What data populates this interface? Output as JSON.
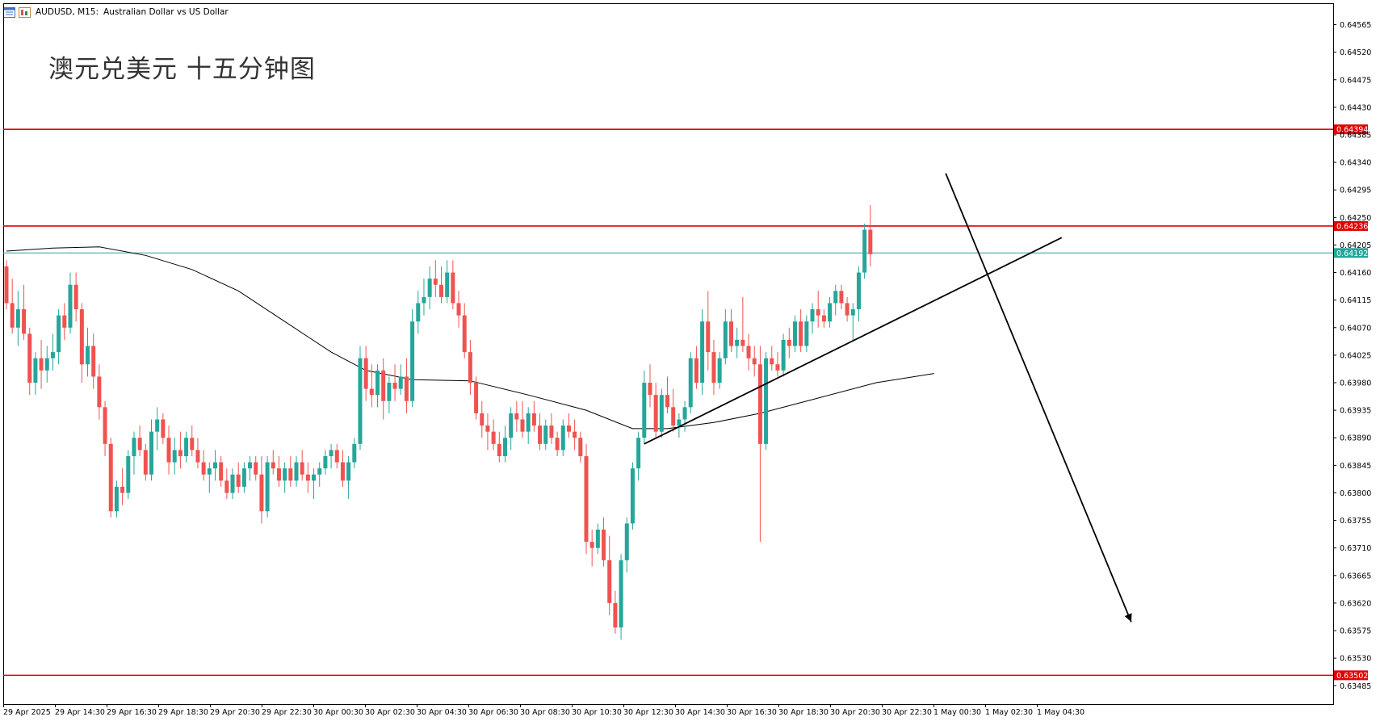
{
  "header": {
    "symbol": "AUDUSD, M15:",
    "description": "Australian Dollar vs US Dollar"
  },
  "title_overlay": "澳元兑美元 十五分钟图",
  "colors": {
    "bull": "#26a69a",
    "bear": "#ef5350",
    "level_line": "#e00000",
    "current_price_line": "#26a69a",
    "ma_line": "#000000",
    "trend_line": "#000000"
  },
  "chart_data": {
    "type": "candlestick",
    "symbol": "AUDUSD",
    "timeframe": "M15",
    "ylim": [
      0.63455,
      0.646
    ],
    "y_ticks": [
      "0.64565",
      "0.64520",
      "0.64475",
      "0.64430",
      "0.64385",
      "0.64340",
      "0.64295",
      "0.64250",
      "0.64205",
      "0.64160",
      "0.64115",
      "0.64070",
      "0.64025",
      "0.63980",
      "0.63935",
      "0.63890",
      "0.63845",
      "0.63800",
      "0.63755",
      "0.63710",
      "0.63665",
      "0.63620",
      "0.63575",
      "0.63530",
      "0.63485"
    ],
    "x_ticks": [
      "29 Apr 2025",
      "29 Apr 14:30",
      "29 Apr 16:30",
      "29 Apr 18:30",
      "29 Apr 20:30",
      "29 Apr 22:30",
      "30 Apr 00:30",
      "30 Apr 02:30",
      "30 Apr 04:30",
      "30 Apr 06:30",
      "30 Apr 08:30",
      "30 Apr 10:30",
      "30 Apr 12:30",
      "30 Apr 14:30",
      "30 Apr 16:30",
      "30 Apr 18:30",
      "30 Apr 20:30",
      "30 Apr 22:30",
      "1 May 00:30",
      "1 May 02:30",
      "1 May 04:30"
    ],
    "levels": [
      {
        "label": "0.64394",
        "value": 0.64394
      },
      {
        "label": "0.64236",
        "value": 0.64236
      },
      {
        "label": "0.63502",
        "value": 0.63502
      }
    ],
    "current_price": {
      "label": "0.64192",
      "value": 0.64192
    },
    "candles": [
      [
        0.6417,
        0.6418,
        0.641,
        0.6411
      ],
      [
        0.6411,
        0.6415,
        0.6406,
        0.6407
      ],
      [
        0.6407,
        0.6413,
        0.6404,
        0.641
      ],
      [
        0.641,
        0.6414,
        0.6405,
        0.6406
      ],
      [
        0.6406,
        0.6407,
        0.6396,
        0.6398
      ],
      [
        0.6398,
        0.6403,
        0.6396,
        0.6402
      ],
      [
        0.6402,
        0.6405,
        0.6397,
        0.64
      ],
      [
        0.64,
        0.6404,
        0.6398,
        0.6402
      ],
      [
        0.6402,
        0.6406,
        0.64,
        0.6403
      ],
      [
        0.6403,
        0.641,
        0.6401,
        0.6409
      ],
      [
        0.6409,
        0.6411,
        0.6405,
        0.6407
      ],
      [
        0.6407,
        0.6416,
        0.6406,
        0.6414
      ],
      [
        0.6414,
        0.6416,
        0.6408,
        0.641
      ],
      [
        0.641,
        0.6411,
        0.6398,
        0.6401
      ],
      [
        0.6401,
        0.6407,
        0.6399,
        0.6404
      ],
      [
        0.6404,
        0.6406,
        0.6397,
        0.6399
      ],
      [
        0.6399,
        0.6401,
        0.6392,
        0.6394
      ],
      [
        0.6394,
        0.6395,
        0.6386,
        0.6388
      ],
      [
        0.6388,
        0.6389,
        0.6376,
        0.6377
      ],
      [
        0.6377,
        0.6382,
        0.6376,
        0.6381
      ],
      [
        0.6381,
        0.6384,
        0.6378,
        0.638
      ],
      [
        0.638,
        0.6387,
        0.6379,
        0.6386
      ],
      [
        0.6386,
        0.639,
        0.6383,
        0.6389
      ],
      [
        0.6389,
        0.6391,
        0.6386,
        0.6387
      ],
      [
        0.6387,
        0.6388,
        0.6382,
        0.6383
      ],
      [
        0.6383,
        0.6392,
        0.6382,
        0.639
      ],
      [
        0.639,
        0.6394,
        0.6387,
        0.6392
      ],
      [
        0.6392,
        0.6393,
        0.6388,
        0.6389
      ],
      [
        0.6389,
        0.6391,
        0.6383,
        0.6385
      ],
      [
        0.6385,
        0.6389,
        0.6383,
        0.6387
      ],
      [
        0.6387,
        0.639,
        0.6384,
        0.6386
      ],
      [
        0.6386,
        0.639,
        0.6385,
        0.6389
      ],
      [
        0.6389,
        0.6391,
        0.6386,
        0.6387
      ],
      [
        0.6387,
        0.6389,
        0.6384,
        0.6385
      ],
      [
        0.6385,
        0.6387,
        0.6382,
        0.6383
      ],
      [
        0.6383,
        0.6385,
        0.638,
        0.6384
      ],
      [
        0.6384,
        0.6387,
        0.6382,
        0.6385
      ],
      [
        0.6385,
        0.6386,
        0.6381,
        0.6382
      ],
      [
        0.6382,
        0.6384,
        0.6379,
        0.638
      ],
      [
        0.638,
        0.6384,
        0.6379,
        0.6383
      ],
      [
        0.6383,
        0.6385,
        0.638,
        0.6381
      ],
      [
        0.6381,
        0.6385,
        0.638,
        0.6384
      ],
      [
        0.6384,
        0.6386,
        0.6382,
        0.6385
      ],
      [
        0.6385,
        0.6386,
        0.6382,
        0.6383
      ],
      [
        0.6383,
        0.6386,
        0.6375,
        0.6377
      ],
      [
        0.6377,
        0.6386,
        0.6376,
        0.6385
      ],
      [
        0.6385,
        0.6387,
        0.6383,
        0.6384
      ],
      [
        0.6384,
        0.6386,
        0.6381,
        0.6382
      ],
      [
        0.6382,
        0.6385,
        0.638,
        0.6384
      ],
      [
        0.6384,
        0.6386,
        0.6381,
        0.6382
      ],
      [
        0.6382,
        0.6386,
        0.6381,
        0.6385
      ],
      [
        0.6385,
        0.6387,
        0.6382,
        0.6383
      ],
      [
        0.6383,
        0.6385,
        0.638,
        0.6382
      ],
      [
        0.6382,
        0.6384,
        0.6379,
        0.6383
      ],
      [
        0.6383,
        0.6385,
        0.6381,
        0.6384
      ],
      [
        0.6384,
        0.6387,
        0.6383,
        0.6386
      ],
      [
        0.6386,
        0.6388,
        0.6384,
        0.6387
      ],
      [
        0.6387,
        0.6388,
        0.6384,
        0.6385
      ],
      [
        0.6385,
        0.6387,
        0.6381,
        0.6382
      ],
      [
        0.6382,
        0.6386,
        0.6379,
        0.6385
      ],
      [
        0.6385,
        0.6389,
        0.6384,
        0.6388
      ],
      [
        0.6388,
        0.6404,
        0.6387,
        0.6402
      ],
      [
        0.6402,
        0.6404,
        0.6395,
        0.6397
      ],
      [
        0.6397,
        0.6401,
        0.6394,
        0.6396
      ],
      [
        0.6396,
        0.6401,
        0.6394,
        0.64
      ],
      [
        0.64,
        0.6402,
        0.6392,
        0.6395
      ],
      [
        0.6395,
        0.6399,
        0.6393,
        0.6398
      ],
      [
        0.6398,
        0.6401,
        0.6395,
        0.6397
      ],
      [
        0.6397,
        0.6401,
        0.6396,
        0.6399
      ],
      [
        0.6399,
        0.6402,
        0.6393,
        0.6395
      ],
      [
        0.6395,
        0.641,
        0.6394,
        0.6408
      ],
      [
        0.6408,
        0.6413,
        0.6406,
        0.6411
      ],
      [
        0.6411,
        0.6415,
        0.6409,
        0.6412
      ],
      [
        0.6412,
        0.6417,
        0.641,
        0.6415
      ],
      [
        0.6415,
        0.6418,
        0.6412,
        0.6414
      ],
      [
        0.6414,
        0.6417,
        0.6411,
        0.6412
      ],
      [
        0.6412,
        0.6418,
        0.6411,
        0.6416
      ],
      [
        0.6416,
        0.6418,
        0.641,
        0.6411
      ],
      [
        0.6411,
        0.6413,
        0.6407,
        0.6409
      ],
      [
        0.6409,
        0.6411,
        0.6402,
        0.6403
      ],
      [
        0.6403,
        0.6405,
        0.6396,
        0.6398
      ],
      [
        0.6398,
        0.6399,
        0.6392,
        0.6393
      ],
      [
        0.6393,
        0.6395,
        0.6389,
        0.6391
      ],
      [
        0.6391,
        0.6393,
        0.6387,
        0.639
      ],
      [
        0.639,
        0.6392,
        0.6387,
        0.6388
      ],
      [
        0.6388,
        0.639,
        0.6385,
        0.6386
      ],
      [
        0.6386,
        0.6391,
        0.6385,
        0.6389
      ],
      [
        0.6389,
        0.6394,
        0.6387,
        0.6393
      ],
      [
        0.6393,
        0.6395,
        0.639,
        0.6392
      ],
      [
        0.6392,
        0.6395,
        0.6389,
        0.639
      ],
      [
        0.639,
        0.6394,
        0.6388,
        0.6393
      ],
      [
        0.6393,
        0.6395,
        0.639,
        0.6391
      ],
      [
        0.6391,
        0.6393,
        0.6387,
        0.6388
      ],
      [
        0.6388,
        0.6392,
        0.6387,
        0.6391
      ],
      [
        0.6391,
        0.6393,
        0.6388,
        0.6389
      ],
      [
        0.6389,
        0.639,
        0.6386,
        0.6387
      ],
      [
        0.6387,
        0.6392,
        0.6386,
        0.6391
      ],
      [
        0.6391,
        0.6393,
        0.6389,
        0.639
      ],
      [
        0.639,
        0.6392,
        0.6387,
        0.6389
      ],
      [
        0.6389,
        0.639,
        0.6385,
        0.6386
      ],
      [
        0.6386,
        0.6388,
        0.637,
        0.6372
      ],
      [
        0.6372,
        0.6374,
        0.6368,
        0.6371
      ],
      [
        0.6371,
        0.6375,
        0.637,
        0.6374
      ],
      [
        0.6374,
        0.6376,
        0.6368,
        0.6369
      ],
      [
        0.6369,
        0.6373,
        0.636,
        0.6362
      ],
      [
        0.6362,
        0.6364,
        0.6357,
        0.6358
      ],
      [
        0.6358,
        0.637,
        0.6356,
        0.6369
      ],
      [
        0.6369,
        0.6376,
        0.6367,
        0.6375
      ],
      [
        0.6375,
        0.6385,
        0.6374,
        0.6384
      ],
      [
        0.6384,
        0.639,
        0.6382,
        0.6389
      ],
      [
        0.6389,
        0.64,
        0.6388,
        0.6398
      ],
      [
        0.6398,
        0.6401,
        0.6394,
        0.6396
      ],
      [
        0.6396,
        0.6398,
        0.6389,
        0.639
      ],
      [
        0.639,
        0.6397,
        0.6389,
        0.6396
      ],
      [
        0.6396,
        0.6399,
        0.6393,
        0.6394
      ],
      [
        0.6394,
        0.6397,
        0.639,
        0.6391
      ],
      [
        0.6391,
        0.6393,
        0.6389,
        0.6392
      ],
      [
        0.6392,
        0.6395,
        0.639,
        0.6394
      ],
      [
        0.6394,
        0.6403,
        0.6393,
        0.6402
      ],
      [
        0.6402,
        0.6404,
        0.6397,
        0.6398
      ],
      [
        0.6398,
        0.641,
        0.6396,
        0.6408
      ],
      [
        0.6408,
        0.6413,
        0.64,
        0.6403
      ],
      [
        0.6403,
        0.6405,
        0.6396,
        0.6398
      ],
      [
        0.6398,
        0.6403,
        0.6397,
        0.6402
      ],
      [
        0.6402,
        0.641,
        0.6401,
        0.6408
      ],
      [
        0.6408,
        0.641,
        0.6403,
        0.6404
      ],
      [
        0.6404,
        0.6407,
        0.6402,
        0.6405
      ],
      [
        0.6405,
        0.6412,
        0.6403,
        0.6404
      ],
      [
        0.6404,
        0.6406,
        0.64,
        0.6402
      ],
      [
        0.6402,
        0.6404,
        0.6399,
        0.6401
      ],
      [
        0.6401,
        0.6404,
        0.6372,
        0.6388
      ],
      [
        0.6388,
        0.6403,
        0.6387,
        0.6402
      ],
      [
        0.6402,
        0.6404,
        0.64,
        0.6401
      ],
      [
        0.6401,
        0.6403,
        0.6399,
        0.64
      ],
      [
        0.64,
        0.6406,
        0.6399,
        0.6405
      ],
      [
        0.6405,
        0.6407,
        0.6402,
        0.6404
      ],
      [
        0.6404,
        0.6409,
        0.6403,
        0.6408
      ],
      [
        0.6408,
        0.641,
        0.6403,
        0.6404
      ],
      [
        0.6404,
        0.6409,
        0.6403,
        0.6408
      ],
      [
        0.6408,
        0.6411,
        0.6406,
        0.641
      ],
      [
        0.641,
        0.6413,
        0.6407,
        0.6409
      ],
      [
        0.6409,
        0.641,
        0.6407,
        0.6408
      ],
      [
        0.6408,
        0.6412,
        0.6407,
        0.6411
      ],
      [
        0.6411,
        0.6414,
        0.6409,
        0.6413
      ],
      [
        0.6413,
        0.6414,
        0.641,
        0.6411
      ],
      [
        0.6411,
        0.6412,
        0.6408,
        0.6409
      ],
      [
        0.6409,
        0.6411,
        0.6405,
        0.641
      ],
      [
        0.641,
        0.6417,
        0.6408,
        0.6416
      ],
      [
        0.6416,
        0.6424,
        0.6415,
        0.6423
      ],
      [
        0.6423,
        0.6427,
        0.6417,
        0.6419
      ]
    ],
    "moving_average": [
      [
        0,
        0.64195
      ],
      [
        8,
        0.642
      ],
      [
        16,
        0.64202
      ],
      [
        24,
        0.64188
      ],
      [
        32,
        0.64165
      ],
      [
        40,
        0.6413
      ],
      [
        48,
        0.6408
      ],
      [
        56,
        0.6403
      ],
      [
        62,
        0.64
      ],
      [
        70,
        0.63985
      ],
      [
        80,
        0.63983
      ],
      [
        90,
        0.6396
      ],
      [
        100,
        0.63935
      ],
      [
        108,
        0.63905
      ],
      [
        114,
        0.63905
      ],
      [
        122,
        0.63915
      ],
      [
        130,
        0.6393
      ],
      [
        140,
        0.63955
      ],
      [
        150,
        0.6398
      ],
      [
        160,
        0.63995
      ]
    ],
    "trend_lines": [
      {
        "from": [
          110,
          0.6388
        ],
        "to": [
          182,
          0.64217
        ]
      },
      {
        "from": [
          162,
          0.64322
        ],
        "to": [
          194,
          0.63589
        ],
        "arrow": true
      }
    ]
  }
}
